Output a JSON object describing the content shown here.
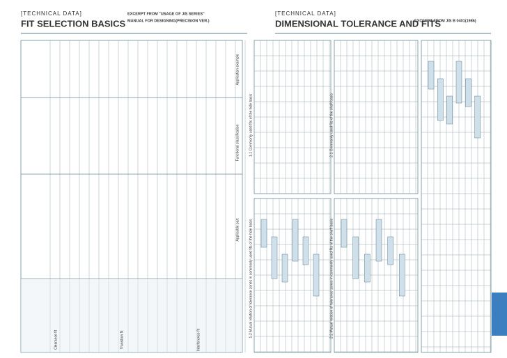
{
  "left": {
    "header": {
      "label": "[TECHNICAL DATA]",
      "title": "FIT SELECTION BASICS"
    },
    "excerpt": [
      "EXCERPT FROM \"USAGE OF JIS SERIES\"",
      "MANUAL FOR DESIGNING(PRECISION VER.)"
    ],
    "table_headings": [
      "Applicable part",
      "Functional classification",
      "Application example"
    ],
    "fit_types": [
      "Clearance fit",
      "Transition fit",
      "Interference fit"
    ]
  },
  "right": {
    "header": {
      "label": "[TECHNICAL DATA]",
      "title": "DIMENSIONAL TOLERANCE AND FITS"
    },
    "excerpt": "EXCERPT FROM  JIS B 0401(1986)",
    "sections": [
      "1-1 Commonly used fits of the hole basis",
      "1-2 Mutual relation of tolerance zones in commonly used fits of the hole basis",
      "2-1 Commonly used fits of the shaft basis",
      "2-2 Mutual relation of tolerance zones in commonly used fits of the shaft basis"
    ]
  }
}
